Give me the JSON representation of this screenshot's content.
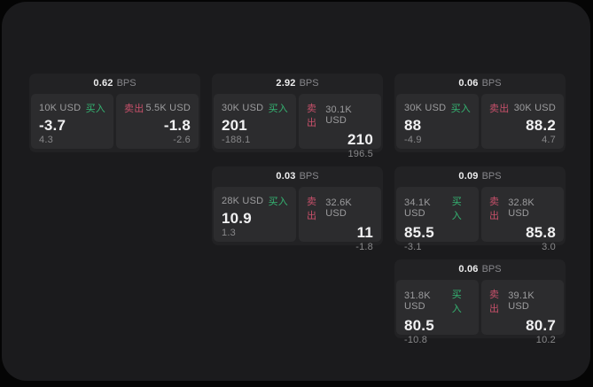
{
  "ui": {
    "bps_label": "BPS",
    "buy_label": "买入",
    "sell_label": "卖出"
  },
  "colors": {
    "page_background": "#050505",
    "surface": "#1b1b1d",
    "card_background": "#222224",
    "tile_background": "#2c2c2e",
    "buy_accent": "#35b673",
    "sell_accent": "#c7506a",
    "primary_text": "#f1f1f2",
    "muted_text": "#9c9c9e"
  },
  "cards": [
    {
      "spread": "0.62",
      "buy": {
        "notional": "10K USD",
        "price": "-3.7",
        "delta": "4.3"
      },
      "sell": {
        "notional": "5.5K USD",
        "price": "-1.8",
        "delta": "-2.6"
      }
    },
    {
      "spread": "2.92",
      "buy": {
        "notional": "30K USD",
        "price": "201",
        "delta": "-188.1"
      },
      "sell": {
        "notional": "30.1K USD",
        "price": "210",
        "delta": "196.5"
      }
    },
    {
      "spread": "0.06",
      "buy": {
        "notional": "30K USD",
        "price": "88",
        "delta": "-4.9"
      },
      "sell": {
        "notional": "30K USD",
        "price": "88.2",
        "delta": "4.7"
      }
    },
    {
      "spread": "0.03",
      "buy": {
        "notional": "28K USD",
        "price": "10.9",
        "delta": "1.3"
      },
      "sell": {
        "notional": "32.6K USD",
        "price": "11",
        "delta": "-1.8"
      }
    },
    {
      "spread": "0.09",
      "buy": {
        "notional": "34.1K USD",
        "price": "85.5",
        "delta": "-3.1"
      },
      "sell": {
        "notional": "32.8K USD",
        "price": "85.8",
        "delta": "3.0"
      }
    },
    {
      "spread": "0.06",
      "buy": {
        "notional": "31.8K USD",
        "price": "80.5",
        "delta": "-10.8"
      },
      "sell": {
        "notional": "39.1K USD",
        "price": "80.7",
        "delta": "10.2"
      }
    }
  ]
}
